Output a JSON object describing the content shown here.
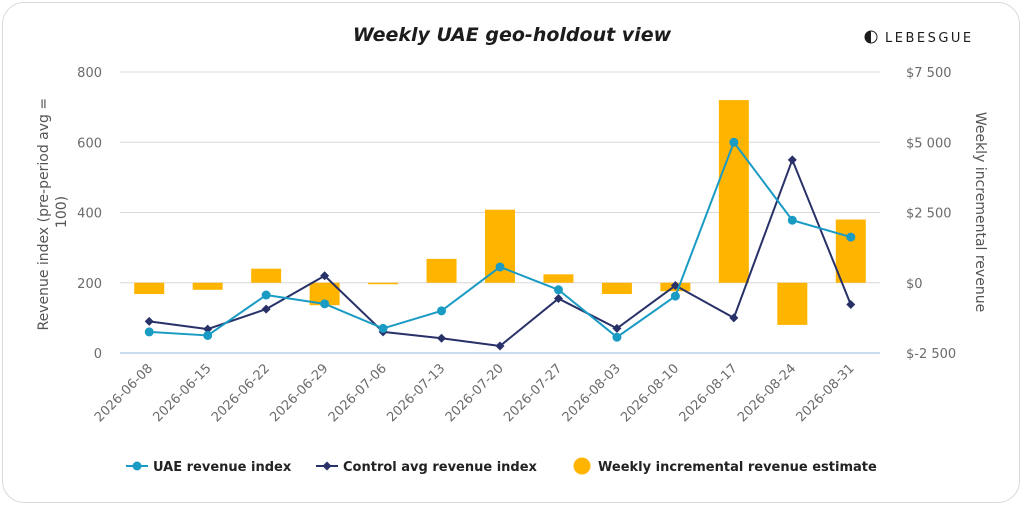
{
  "brand": {
    "name": "LEBESGUE"
  },
  "colors": {
    "uae": "#1a9bc4",
    "control": "#283168",
    "incremental": "#ffb400",
    "grid": "#d8d8d8",
    "baseline": "#aac8e6"
  },
  "chart_data": {
    "type": "bar+line",
    "title": "Weekly UAE geo-holdout view",
    "categories": [
      "2026-06-08",
      "2026-06-15",
      "2026-06-22",
      "2026-06-29",
      "2026-07-06",
      "2026-07-13",
      "2026-07-20",
      "2026-07-27",
      "2026-08-03",
      "2026-08-10",
      "2026-08-17",
      "2026-08-24",
      "2026-08-31"
    ],
    "y_left": {
      "label": "Revenue index (pre-period avg = 100)",
      "label_lines": [
        "Revenue index (pre-period avg =",
        "100)"
      ],
      "range": [
        0,
        800
      ],
      "ticks": [
        0,
        200,
        400,
        600,
        800
      ],
      "tick_labels": [
        "0",
        "200",
        "400",
        "600",
        "800"
      ]
    },
    "y_right": {
      "label": "Weekly incremental revenue",
      "range": [
        -2500,
        7500
      ],
      "ticks": [
        -2500,
        0,
        2500,
        5000,
        7500
      ],
      "tick_labels": [
        "$-2 500",
        "$0",
        "$2 500",
        "$5 000",
        "$7 500"
      ]
    },
    "grid": true,
    "legend_position": "bottom",
    "series": [
      {
        "name": "UAE revenue index",
        "kind": "line",
        "axis": "left",
        "marker": "circle",
        "values": [
          60,
          50,
          165,
          140,
          70,
          120,
          245,
          180,
          45,
          162,
          600,
          378,
          330
        ]
      },
      {
        "name": "Control avg revenue index",
        "kind": "line",
        "axis": "left",
        "marker": "diamond",
        "values": [
          90,
          68,
          125,
          220,
          60,
          42,
          20,
          155,
          70,
          192,
          100,
          550,
          138
        ]
      },
      {
        "name": "Weekly incremental revenue estimate",
        "kind": "bar",
        "axis": "right",
        "values": [
          -400,
          -250,
          500,
          -800,
          -30,
          850,
          2600,
          300,
          -400,
          -300,
          6500,
          -1500,
          2250
        ]
      }
    ]
  }
}
